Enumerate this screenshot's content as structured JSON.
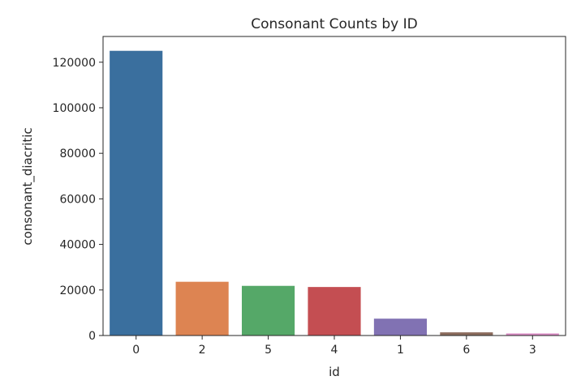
{
  "chart_data": {
    "type": "bar",
    "title": "Consonant Counts by ID",
    "xlabel": "id",
    "ylabel": "consonant_diacritic",
    "categories": [
      "0",
      "2",
      "5",
      "4",
      "1",
      "6",
      "3"
    ],
    "values": [
      125000,
      23600,
      21800,
      21300,
      7400,
      1400,
      900
    ],
    "colors": [
      "#3a6f9e",
      "#dd8452",
      "#55a868",
      "#c44e52",
      "#8172b3",
      "#8c6d5e",
      "#da8bc3"
    ],
    "ylim": [
      0,
      131300
    ],
    "yticks": [
      0,
      20000,
      40000,
      60000,
      80000,
      100000,
      120000
    ],
    "ytick_labels": [
      "0",
      "20000",
      "40000",
      "60000",
      "80000",
      "100000",
      "120000"
    ],
    "grid": false,
    "legend": "none"
  }
}
